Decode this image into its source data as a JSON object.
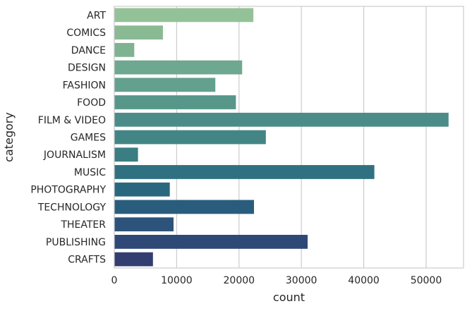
{
  "chart_data": {
    "type": "bar",
    "orientation": "horizontal",
    "xlabel": "count",
    "ylabel": "category",
    "xlim": [
      0,
      56000
    ],
    "x_ticks": [
      0,
      10000,
      20000,
      30000,
      40000,
      50000
    ],
    "x_tick_labels": [
      "0",
      "10000",
      "20000",
      "30000",
      "40000",
      "50000"
    ],
    "grid": "vertical",
    "palette": "crest",
    "categories": [
      "ART",
      "COMICS",
      "DANCE",
      "DESIGN",
      "FASHION",
      "FOOD",
      "FILM & VIDEO",
      "GAMES",
      "JOURNALISM",
      "MUSIC",
      "PHOTOGRAPHY",
      "TECHNOLOGY",
      "THEATER",
      "PUBLISHING",
      "CRAFTS"
    ],
    "values": [
      22300,
      7800,
      3200,
      20500,
      16200,
      19500,
      53600,
      24300,
      3800,
      41700,
      8900,
      22400,
      9500,
      31000,
      6200
    ],
    "colors": [
      "#94c298",
      "#89ba94",
      "#7eb391",
      "#6ea890",
      "#63a08d",
      "#56978a",
      "#4b8c88",
      "#438585",
      "#3a7d83",
      "#307181",
      "#29677f",
      "#2a5d7d",
      "#2d537a",
      "#2e4976",
      "#323e70"
    ]
  }
}
